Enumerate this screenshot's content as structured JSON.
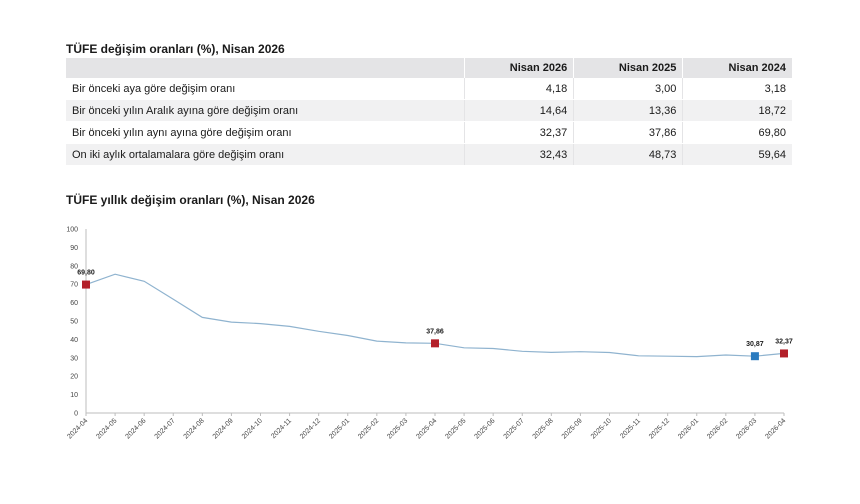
{
  "table": {
    "title": "TÜFE değişim oranları (%), Nisan 2026",
    "header": [
      "",
      "Nisan 2026",
      "Nisan 2025",
      "Nisan 2024"
    ],
    "rows": [
      [
        "Bir önceki aya göre değişim oranı",
        "4,18",
        "3,00",
        "3,18"
      ],
      [
        "Bir önceki yılın Aralık ayına göre değişim oranı",
        "14,64",
        "13,36",
        "18,72"
      ],
      [
        "Bir önceki yılın aynı ayına göre değişim oranı",
        "32,37",
        "37,86",
        "69,80"
      ],
      [
        "On iki aylık ortalamalara göre değişim oranı",
        "32,43",
        "48,73",
        "59,64"
      ]
    ]
  },
  "chart_data": {
    "type": "line",
    "title": "TÜFE yıllık değişim oranları (%), Nisan 2026",
    "xlabel": "",
    "ylabel": "",
    "ylim": [
      0,
      100
    ],
    "yticks": [
      0,
      10,
      20,
      30,
      40,
      50,
      60,
      70,
      80,
      90,
      100
    ],
    "grid": false,
    "x": [
      "2024-04",
      "2024-05",
      "2024-06",
      "2024-07",
      "2024-08",
      "2024-09",
      "2024-10",
      "2024-11",
      "2024-12",
      "2025-01",
      "2025-02",
      "2025-03",
      "2025-04",
      "2025-05",
      "2025-06",
      "2025-07",
      "2025-08",
      "2025-09",
      "2025-10",
      "2025-11",
      "2025-12",
      "2026-01",
      "2026-02",
      "2026-03",
      "2026-04"
    ],
    "series": [
      {
        "values": [
          69.8,
          75.45,
          71.6,
          61.78,
          51.97,
          49.38,
          48.58,
          47.09,
          44.38,
          42.12,
          39.05,
          38.1,
          37.86,
          35.41,
          35.05,
          33.52,
          32.95,
          33.29,
          32.87,
          31.07,
          30.89,
          30.65,
          31.53,
          30.87,
          32.37
        ],
        "color": "#8fb3cf"
      }
    ],
    "markers": [
      {
        "index": 0,
        "label": "69,80",
        "color": "#b3202a"
      },
      {
        "index": 12,
        "label": "37,86",
        "color": "#b3202a"
      },
      {
        "index": 23,
        "label": "30,87",
        "color": "#2b7bbf"
      },
      {
        "index": 24,
        "label": "32,37",
        "color": "#b3202a"
      }
    ]
  }
}
